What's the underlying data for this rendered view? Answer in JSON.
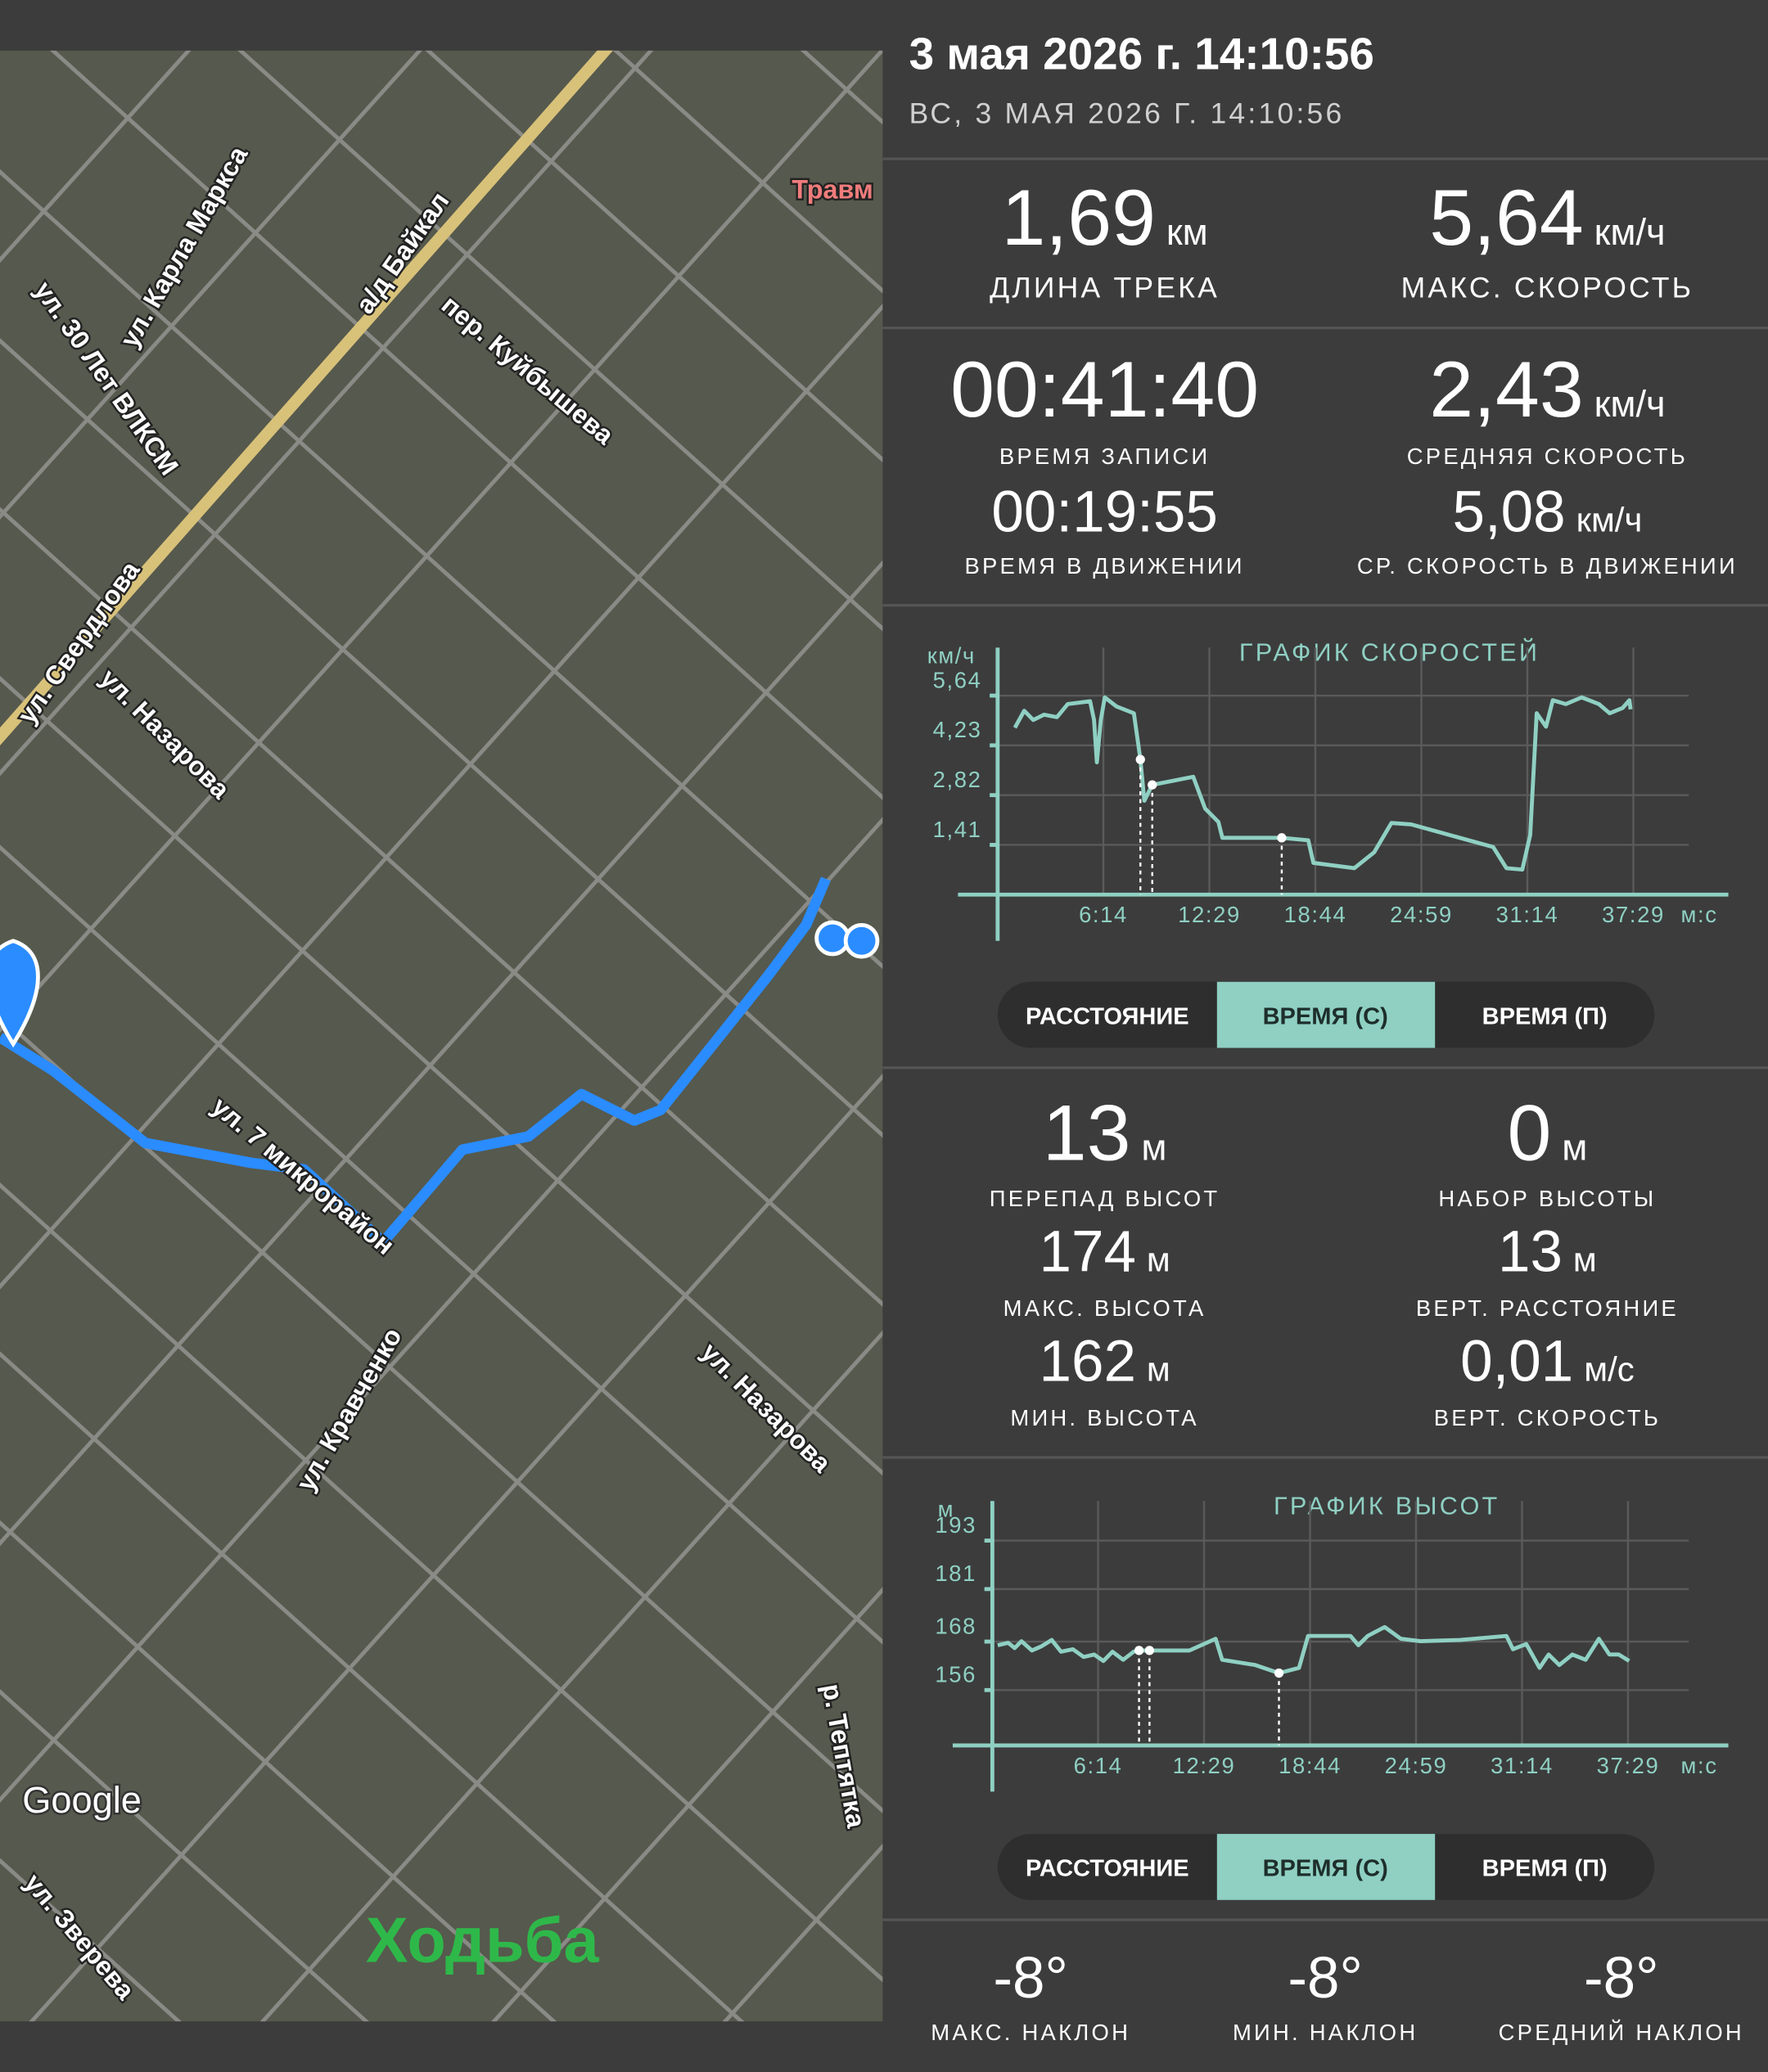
{
  "map": {
    "labels": [
      "ул. Карла Маркса",
      "ул. 30 Лет ВЛКСМ",
      "а/д Байкал",
      "пер. Куйбышева",
      "Травм",
      "ул. Свердлова",
      "ул. Назарова",
      "ул. 7 микрорайон",
      "ул. Кравченко",
      "ул. Назарова",
      "р. Тептятка",
      "ул. Зверева"
    ],
    "attribution": "Google",
    "activity": "Ходьба"
  },
  "header": {
    "title": "3 мая 2026 г. 14:10:56",
    "subtitle": "ВС, 3 МАЯ 2026 Г. 14:10:56"
  },
  "track_stats": [
    {
      "value": "1,69",
      "unit": "км",
      "label": "ДЛИНА ТРЕКА"
    },
    {
      "value": "5,64",
      "unit": "км/ч",
      "label": "МАКС. СКОРОСТЬ"
    },
    {
      "value": "00:41:40",
      "unit": "",
      "label": "ВРЕМЯ ЗАПИСИ"
    },
    {
      "value": "2,43",
      "unit": "км/ч",
      "label": "СРЕДНЯЯ СКОРОСТЬ"
    },
    {
      "value": "00:19:55",
      "unit": "",
      "label": "ВРЕМЯ В ДВИЖЕНИИ"
    },
    {
      "value": "5,08",
      "unit": "км/ч",
      "label": "СР. СКОРОСТЬ В ДВИЖЕНИИ"
    }
  ],
  "speed_chart": {
    "type": "line",
    "title": "ГРАФИК СКОРОСТЕЙ",
    "y_unit": "км/ч",
    "x_unit": "м:с",
    "color": "#8fd0c3",
    "grid": true,
    "xlim": [
      0,
      2585
    ],
    "ylim": [
      0,
      7.0
    ],
    "xticks": [
      {
        "value": 374,
        "label": "6:14"
      },
      {
        "value": 749,
        "label": "12:29"
      },
      {
        "value": 1124,
        "label": "18:44"
      },
      {
        "value": 1499,
        "label": "24:59"
      },
      {
        "value": 1874,
        "label": "31:14"
      },
      {
        "value": 2249,
        "label": "37:29"
      }
    ],
    "yticks": [
      {
        "value": 1.41,
        "label": "1,41"
      },
      {
        "value": 2.82,
        "label": "2,82"
      },
      {
        "value": 4.23,
        "label": "4,23"
      },
      {
        "value": 5.64,
        "label": "5,64"
      }
    ],
    "x": [
      61,
      94,
      126,
      164,
      210,
      248,
      327,
      341,
      351,
      365,
      379,
      421,
      482,
      505,
      519,
      547,
      692,
      734,
      781,
      795,
      1005,
      1099,
      1117,
      1262,
      1332,
      1393,
      1463,
      1753,
      1800,
      1856,
      1884,
      1907,
      1940,
      1964,
      2010,
      2066,
      2127,
      2165,
      2211,
      2235,
      2239
    ],
    "y": [
      4.73,
      5.21,
      4.95,
      5.1,
      5.03,
      5.4,
      5.48,
      4.95,
      3.75,
      4.95,
      5.59,
      5.33,
      5.14,
      3.83,
      2.66,
      3.11,
      3.34,
      2.44,
      2.06,
      1.61,
      1.61,
      1.54,
      0.9,
      0.75,
      1.2,
      2.03,
      1.99,
      1.35,
      0.75,
      0.71,
      1.69,
      5.14,
      4.76,
      5.51,
      5.4,
      5.59,
      5.4,
      5.14,
      5.29,
      5.51,
      5.25
    ],
    "markers": {
      "x": [
        505,
        547,
        1005
      ],
      "y": [
        3.83,
        3.11,
        1.61
      ]
    }
  },
  "speed_toggle": [
    "РАССТОЯНИЕ",
    "ВРЕМЯ (С)",
    "ВРЕМЯ (П)"
  ],
  "elevation_stats": [
    {
      "value": "13",
      "unit": "м",
      "label": "ПЕРЕПАД ВЫСОТ"
    },
    {
      "value": "0",
      "unit": "м",
      "label": "НАБОР ВЫСОТЫ"
    },
    {
      "value": "174",
      "unit": "м",
      "label": "МАКС. ВЫСОТА"
    },
    {
      "value": "13",
      "unit": "м",
      "label": "ВЕРТ. РАССТОЯНИЕ"
    },
    {
      "value": "162",
      "unit": "м",
      "label": "МИН. ВЫСОТА"
    },
    {
      "value": "0,01",
      "unit": "м/с",
      "label": "ВЕРТ. СКОРОСТЬ"
    }
  ],
  "elevation_chart": {
    "type": "line",
    "title": "ГРАФИК ВЫСОТ",
    "y_unit": "м",
    "x_unit": "м:с",
    "color": "#8fd0c3",
    "grid": true,
    "xlim": [
      0,
      2604
    ],
    "ylim": [
      142.3,
      202.8
    ],
    "xticks": [
      {
        "value": 374,
        "label": "6:14"
      },
      {
        "value": 749,
        "label": "12:29"
      },
      {
        "value": 1124,
        "label": "18:44"
      },
      {
        "value": 1499,
        "label": "24:59"
      },
      {
        "value": 1874,
        "label": "31:14"
      },
      {
        "value": 2249,
        "label": "37:29"
      }
    ],
    "yticks": [
      156,
      168,
      181,
      193
    ],
    "x": [
      19,
      56,
      79,
      103,
      140,
      173,
      210,
      243,
      285,
      323,
      360,
      393,
      425,
      463,
      500,
      519,
      556,
      697,
      790,
      813,
      930,
      1014,
      1085,
      1117,
      1267,
      1295,
      1328,
      1388,
      1445,
      1515,
      1655,
      1819,
      1842,
      1889,
      1936,
      1968,
      2006,
      2052,
      2099,
      2146,
      2183,
      2216,
      2253
    ],
    "y": [
      167.1,
      167.7,
      166.4,
      168.1,
      165.8,
      166.8,
      168.4,
      165.5,
      166.1,
      164.2,
      164.8,
      163.2,
      165.5,
      163.5,
      165.5,
      165.8,
      165.8,
      165.8,
      168.7,
      163.5,
      162.2,
      160.2,
      161.5,
      169.4,
      169.4,
      167.1,
      169.4,
      171.6,
      168.7,
      168.1,
      168.4,
      169.4,
      166.1,
      167.4,
      161.5,
      164.8,
      162.2,
      164.8,
      163.5,
      168.7,
      164.8,
      164.8,
      163.2
    ],
    "markers": {
      "x": [
        519,
        556,
        1014
      ],
      "y": [
        165.8,
        165.8,
        160.2
      ]
    }
  },
  "elevation_toggle": [
    "РАССТОЯНИЕ",
    "ВРЕМЯ (С)",
    "ВРЕМЯ (П)"
  ],
  "slope_stats": [
    {
      "value": "-8°",
      "label": "МАКС. НАКЛОН"
    },
    {
      "value": "-8°",
      "label": "МИН. НАКЛОН"
    },
    {
      "value": "-8°",
      "label": "СРЕДНИЙ НАКЛОН"
    }
  ]
}
